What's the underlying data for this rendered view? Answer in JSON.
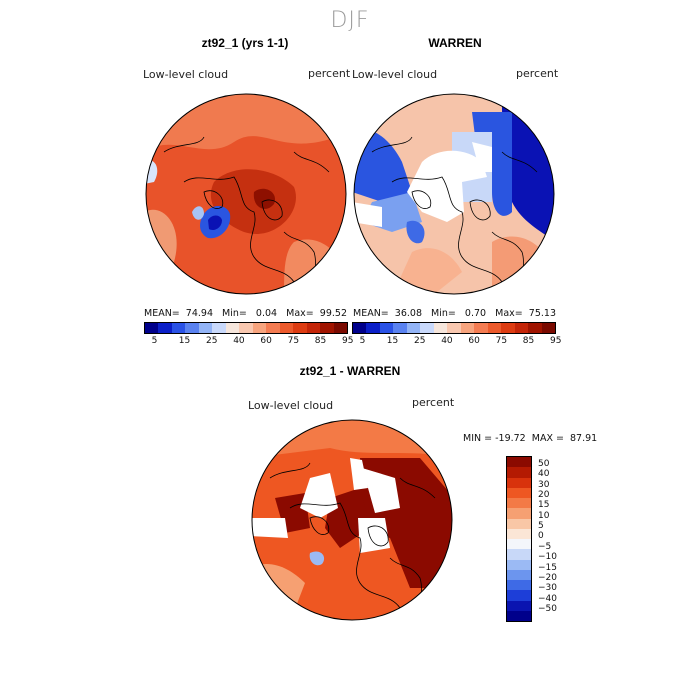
{
  "figure": {
    "season": "DJF"
  },
  "panels": [
    {
      "title": "zt92_1 (yrs 1-1)",
      "field_label": "Low-level cloud",
      "units": "percent",
      "stats": "MEAN=  74.94   Min=   0.04   Max=  99.52"
    },
    {
      "title": "WARREN",
      "field_label": "Low-level cloud",
      "units": "percent",
      "stats": "MEAN=  36.08   Min=   0.70   Max=  75.13"
    }
  ],
  "colorbar_top": {
    "ticks": [
      "5",
      "15",
      "25",
      "40",
      "60",
      "75",
      "85",
      "95"
    ],
    "colors": [
      "#00008b",
      "#0b1fc8",
      "#2a52e6",
      "#5a82f0",
      "#93b4f6",
      "#c9d9fb",
      "#f6e6dc",
      "#f9c8b0",
      "#f7a47e",
      "#f47c52",
      "#ec5a2c",
      "#dd3c12",
      "#c42508",
      "#a01400",
      "#7a0a00"
    ]
  },
  "diff_panel": {
    "title": "zt92_1 - WARREN",
    "field_label": "Low-level cloud",
    "units": "percent",
    "stats": "MIN = -19.72  MAX =  87.91"
  },
  "colorbar_diff": {
    "ticks": [
      "50",
      "40",
      "30",
      "20",
      "15",
      "10",
      "5",
      "0",
      "−5",
      "−10",
      "−15",
      "−20",
      "−30",
      "−40",
      "−50"
    ],
    "colors": [
      "#8b0a00",
      "#b41a02",
      "#d8320c",
      "#ee5722",
      "#f37a46",
      "#f6a072",
      "#f9c7a6",
      "#fbe6d6",
      "#f4f6fb",
      "#c8d8f8",
      "#9bbaf4",
      "#6c95ee",
      "#3e6ae6",
      "#1d3ed8",
      "#0a14b0",
      "#00008b"
    ]
  },
  "colors": {
    "red": "#e8532a",
    "darkred": "#a81a04",
    "lightred": "#f6b79a",
    "blue": "#2a55e0",
    "darkblue": "#0a12b4",
    "lightblue": "#a8c4f4"
  }
}
